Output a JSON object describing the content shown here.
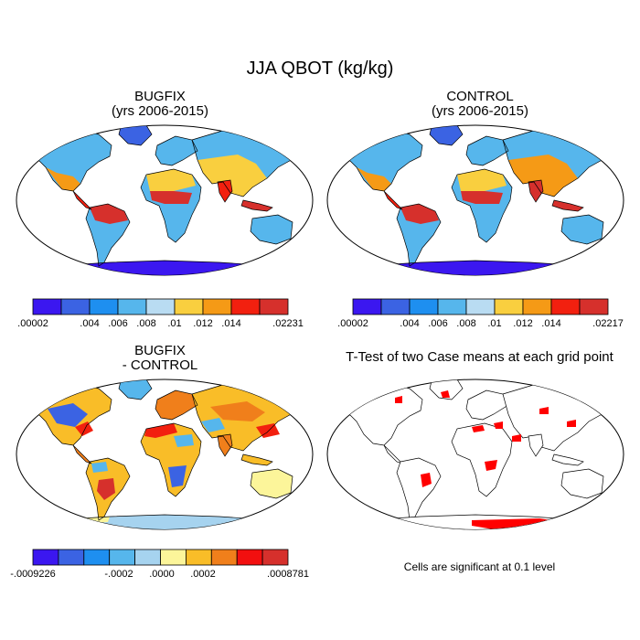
{
  "figure": {
    "title": "JJA QBOT (kg/kg)",
    "note": "Cells are significant at 0.1 level"
  },
  "panels": {
    "bugfix": {
      "title_line1": "BUGFIX",
      "title_line2": "(yrs 2006-2015)"
    },
    "control": {
      "title_line1": "CONTROL",
      "title_line2": "(yrs 2006-2015)"
    },
    "diff": {
      "title_line1": "BUGFIX",
      "title_line2": "- CONTROL"
    },
    "ttest": {
      "title_line1": "T-Test of two Case means at each grid point"
    }
  },
  "colorbars": {
    "bugfix": {
      "colors": [
        "#3b17f0",
        "#3b63e3",
        "#1e8ff0",
        "#56b6ec",
        "#b9dcf2",
        "#f9cf3f",
        "#f59a16",
        "#f2200f",
        "#d6302c"
      ],
      "labels": [
        ".00002",
        ".004",
        ".006",
        ".008",
        ".01",
        ".012",
        ".014",
        ".02231"
      ]
    },
    "control": {
      "colors": [
        "#3b17f0",
        "#3b63e3",
        "#1e8ff0",
        "#56b6ec",
        "#b9dcf2",
        "#f9cf3f",
        "#f59a16",
        "#f2200f",
        "#d6302c"
      ],
      "labels": [
        ".00002",
        ".004",
        ".006",
        ".008",
        ".01",
        ".012",
        ".014",
        ".02217"
      ]
    },
    "diff": {
      "colors": [
        "#3b17f0",
        "#3b63e3",
        "#1e8ff0",
        "#56b6ec",
        "#a6d3ef",
        "#fcf59a",
        "#f9bd28",
        "#f07f1b",
        "#f20f0f",
        "#d6302c"
      ],
      "labels": [
        "-.0009226",
        "-.0002",
        ".0000",
        ".0002",
        ".0008781"
      ]
    }
  },
  "colors": {
    "significant": "#ff0000",
    "land_outline": "#000000"
  }
}
